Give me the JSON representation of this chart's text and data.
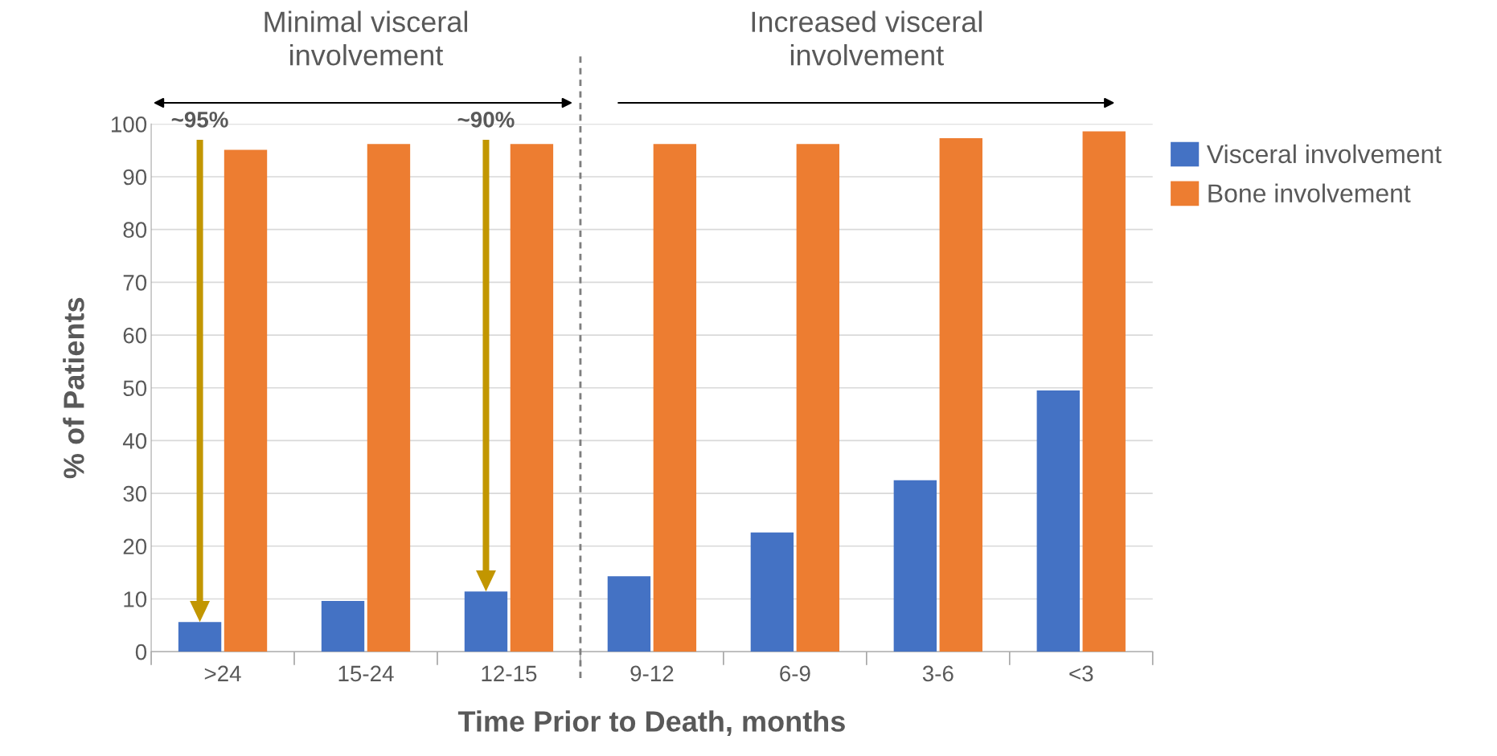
{
  "chart_data": {
    "type": "bar",
    "xlabel": "Time Prior to Death, months",
    "ylabel": "% of Patients",
    "categories": [
      ">24",
      "15-24",
      "12-15",
      "9-12",
      "6-9",
      "3-6",
      "<3"
    ],
    "series": [
      {
        "name": "Visceral involvement",
        "color": "#4472c4",
        "values": [
          5.6,
          9.6,
          11.4,
          14.3,
          22.6,
          32.5,
          49.5
        ]
      },
      {
        "name": "Bone involvement",
        "color": "#ed7d31",
        "values": [
          95.1,
          96.2,
          96.2,
          96.2,
          96.2,
          97.3,
          98.6
        ]
      }
    ],
    "ylim": [
      0,
      100
    ],
    "yticks": [
      0,
      10,
      20,
      30,
      40,
      50,
      60,
      70,
      80,
      90,
      100
    ],
    "grid": "y",
    "legend": "right",
    "annotations": [
      "Minimal visceral involvement",
      "Increased visceral involvement",
      "~95%",
      "~90%"
    ]
  }
}
